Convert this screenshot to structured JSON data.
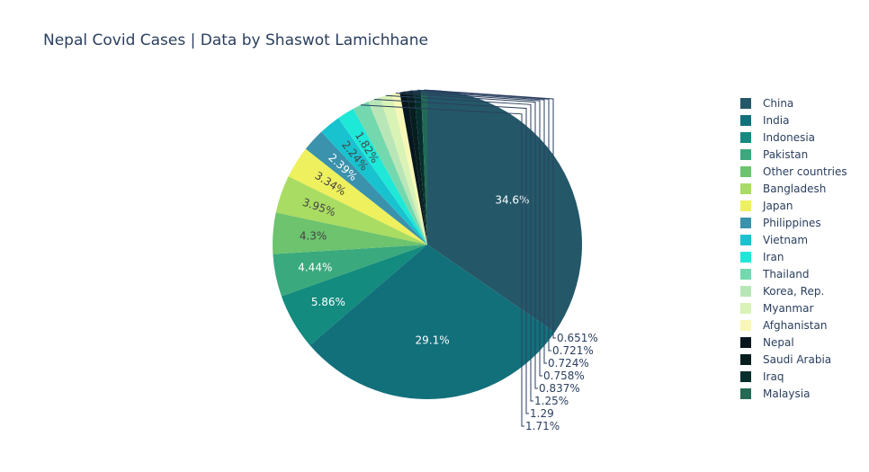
{
  "chart_data": {
    "type": "pie",
    "title": "Nepal Covid Cases | Data by Shaswot Lamichhane",
    "legend_position": "right",
    "slices": [
      {
        "name": "China",
        "percent_label": "34.6%",
        "value": 34.6,
        "color": "#245868"
      },
      {
        "name": "India",
        "percent_label": "29.1%",
        "value": 29.1,
        "color": "#12707a"
      },
      {
        "name": "Indonesia",
        "percent_label": "5.86%",
        "value": 5.86,
        "color": "#138b7f"
      },
      {
        "name": "Pakistan",
        "percent_label": "4.44%",
        "value": 4.44,
        "color": "#3aa97d"
      },
      {
        "name": "Other countries",
        "percent_label": "4.3%",
        "value": 4.3,
        "color": "#6dc36e"
      },
      {
        "name": "Bangladesh",
        "percent_label": "3.95%",
        "value": 3.95,
        "color": "#a9dc62"
      },
      {
        "name": "Japan",
        "percent_label": "3.34%",
        "value": 3.34,
        "color": "#eef05d"
      },
      {
        "name": "Philippines",
        "percent_label": "2.39%",
        "value": 2.39,
        "color": "#3b92ad"
      },
      {
        "name": "Vietnam",
        "percent_label": "2.24%",
        "value": 2.24,
        "color": "#18c3cf"
      },
      {
        "name": "Iran",
        "percent_label": "1.82%",
        "value": 1.82,
        "color": "#1ee8d8"
      },
      {
        "name": "Thailand",
        "percent_label": "1.71%",
        "value": 1.71,
        "color": "#74d8ae"
      },
      {
        "name": "Korea, Rep.",
        "percent_label": "1.29",
        "value": 1.29,
        "color": "#b9e6b7"
      },
      {
        "name": "Myanmar",
        "percent_label": "1.25%",
        "value": 1.25,
        "color": "#d9f2b6"
      },
      {
        "name": "Afghanistan",
        "percent_label": "0.837%",
        "value": 0.837,
        "color": "#f7f8b6"
      },
      {
        "name": "Nepal",
        "percent_label": "0.758%",
        "value": 0.758,
        "color": "#08161e"
      },
      {
        "name": "Saudi Arabia",
        "percent_label": "0.724%",
        "value": 0.724,
        "color": "#061e1e"
      },
      {
        "name": "Iraq",
        "percent_label": "0.721%",
        "value": 0.721,
        "color": "#062e2d"
      },
      {
        "name": "Malaysia",
        "percent_label": "0.651%",
        "value": 0.651,
        "color": "#236a55"
      }
    ]
  }
}
